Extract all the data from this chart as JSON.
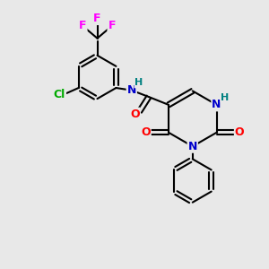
{
  "background_color": "#e8e8e8",
  "bond_color": "#000000",
  "atom_colors": {
    "N": "#0000cc",
    "O": "#ff0000",
    "F": "#ff00ff",
    "Cl": "#00aa00",
    "H": "#008080",
    "C": "#000000"
  },
  "font_size": 9,
  "figsize": [
    3.0,
    3.0
  ],
  "dpi": 100
}
